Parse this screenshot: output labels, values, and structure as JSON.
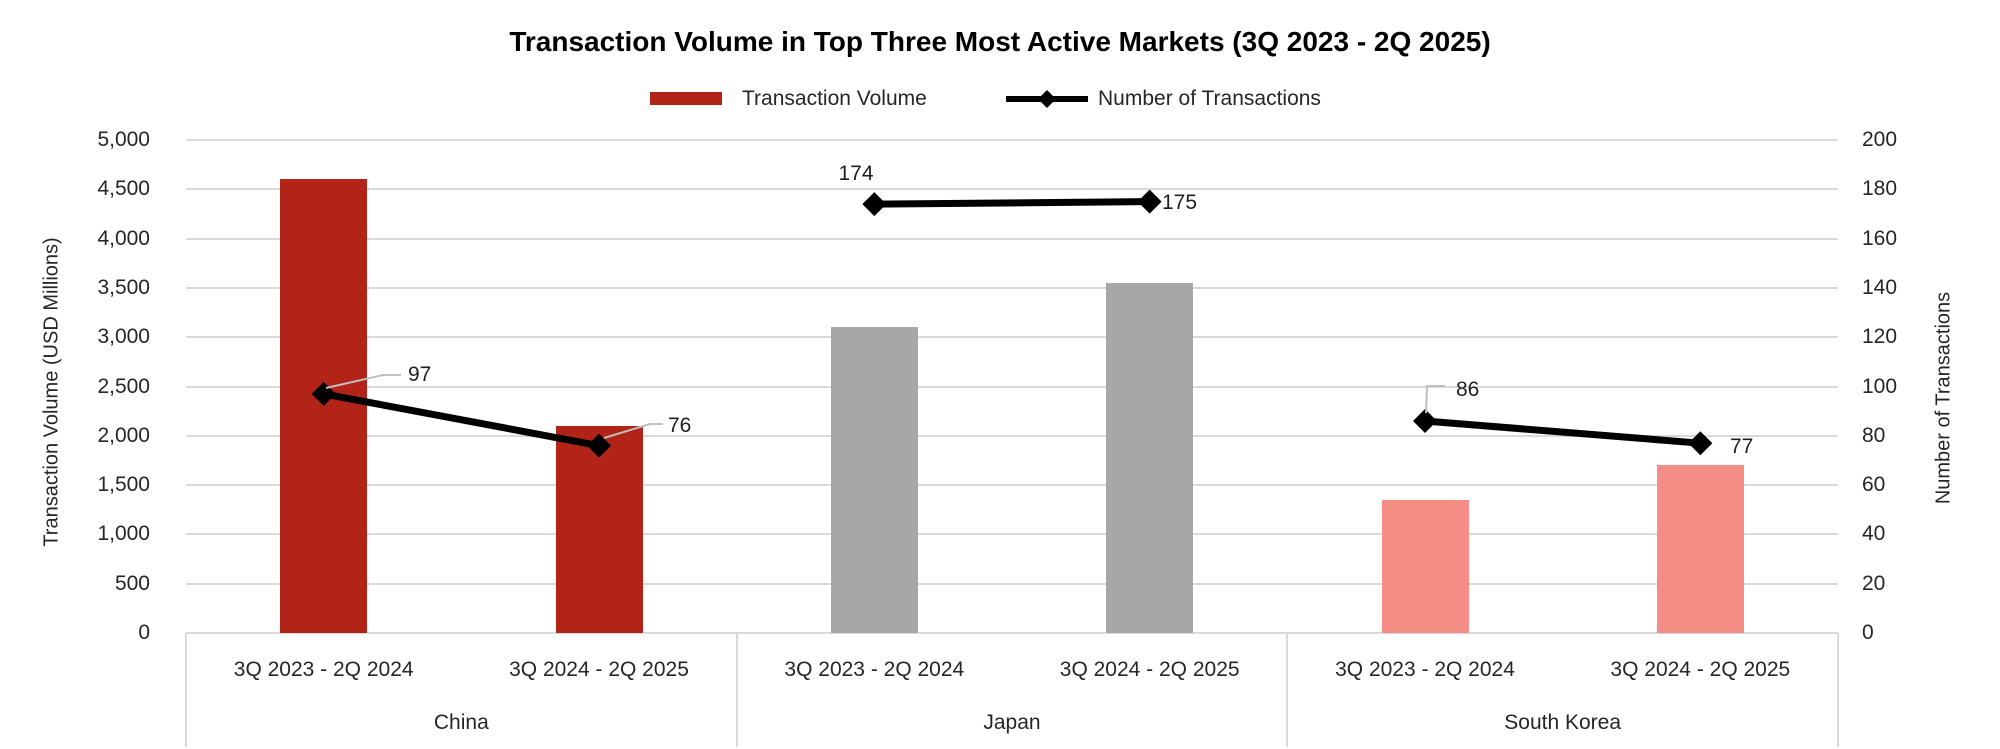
{
  "chart_data": {
    "type": "combo-bar-line",
    "title": "Transaction Volume in Top Three Most Active Markets (3Q 2023 - 2Q 2025)",
    "series": [
      {
        "name": "Transaction Volume",
        "type": "bar",
        "axis": "left"
      },
      {
        "name": "Number of Transactions",
        "type": "line",
        "axis": "right",
        "color": "#000000"
      }
    ],
    "legend": {
      "bar_swatch_color": "#b22318",
      "line_color": "#000000"
    },
    "left_axis": {
      "title": "Transaction Volume (USD Millions)",
      "min": 0,
      "max": 5000,
      "step": 500,
      "ticks": [
        "0",
        "500",
        "1,000",
        "1,500",
        "2,000",
        "2,500",
        "3,000",
        "3,500",
        "4,000",
        "4,500",
        "5,000"
      ]
    },
    "right_axis": {
      "title": "Number of Transactions",
      "min": 0,
      "max": 200,
      "step": 20,
      "ticks": [
        "0",
        "20",
        "40",
        "60",
        "80",
        "100",
        "120",
        "140",
        "160",
        "180",
        "200"
      ]
    },
    "categories_per_group": [
      "3Q 2023 - 2Q 2024",
      "3Q 2024 - 2Q 2025"
    ],
    "groups": [
      {
        "country": "China",
        "bar_color": "#b22318",
        "points": [
          {
            "period": "3Q 2023 - 2Q 2024",
            "transaction_volume_usd_m": 4600,
            "num_transactions": 97,
            "num_label": "97"
          },
          {
            "period": "3Q 2024 - 2Q 2025",
            "transaction_volume_usd_m": 2100,
            "num_transactions": 76,
            "num_label": "76"
          }
        ]
      },
      {
        "country": "Japan",
        "bar_color": "#a7a7a7",
        "points": [
          {
            "period": "3Q 2023 - 2Q 2024",
            "transaction_volume_usd_m": 3100,
            "num_transactions": 174,
            "num_label": "174"
          },
          {
            "period": "3Q 2024 - 2Q 2025",
            "transaction_volume_usd_m": 3550,
            "num_transactions": 175,
            "num_label": "175"
          }
        ]
      },
      {
        "country": "South Korea",
        "bar_color": "#f48e85",
        "points": [
          {
            "period": "3Q 2023 - 2Q 2024",
            "transaction_volume_usd_m": 1350,
            "num_transactions": 86,
            "num_label": "86"
          },
          {
            "period": "3Q 2024 - 2Q 2025",
            "transaction_volume_usd_m": 1700,
            "num_transactions": 77,
            "num_label": "77"
          }
        ]
      }
    ],
    "layout_hints": {
      "gridlines": "horizontal",
      "gridline_color": "#d9d9d9",
      "leader_line_color": "#bfbfbf",
      "legend_position": "top-center",
      "background": "#ffffff"
    }
  }
}
